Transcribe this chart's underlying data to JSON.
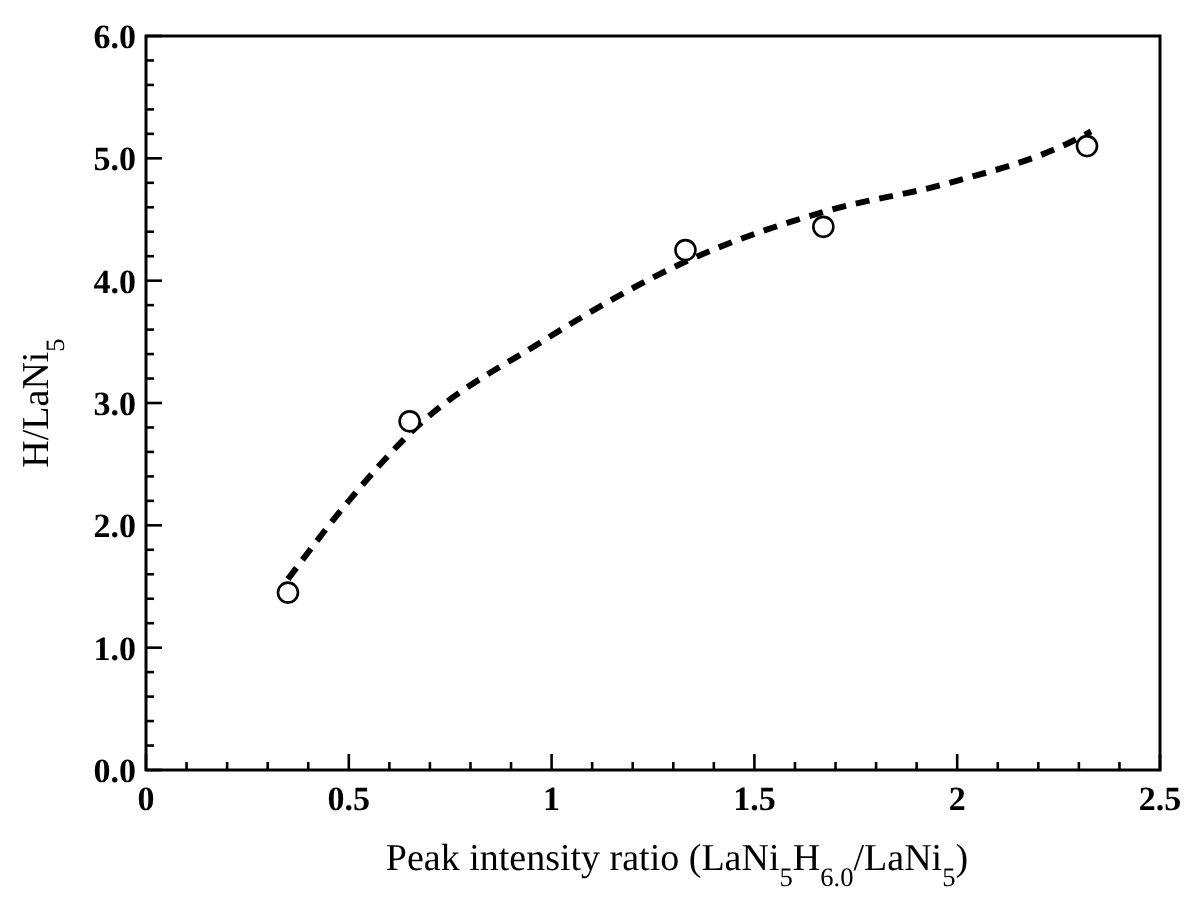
{
  "chart_data": {
    "type": "scatter",
    "xlabel": "Peak intensity ratio (LaNi$_{5}$H$_{6.0}$/LaNi$_{5}$)",
    "ylabel": "H/LaNi$_{5}$",
    "xlim": [
      0,
      2.5
    ],
    "ylim": [
      0,
      6
    ],
    "xticks": [
      0,
      {
        "value": 0.1,
        "label": null
      },
      {
        "value": 0.2,
        "label": null
      },
      {
        "value": 0.3,
        "label": null
      },
      {
        "value": 0.4,
        "label": null
      },
      0.5,
      {
        "value": 0.6,
        "label": null
      },
      {
        "value": 0.7,
        "label": null
      },
      {
        "value": 0.8,
        "label": null
      },
      {
        "value": 0.9,
        "label": null
      },
      1,
      {
        "value": 1.1,
        "label": null
      },
      {
        "value": 1.2,
        "label": null
      },
      {
        "value": 1.3,
        "label": null
      },
      {
        "value": 1.4,
        "label": null
      },
      1.5,
      {
        "value": 1.6,
        "label": null
      },
      {
        "value": 1.7,
        "label": null
      },
      {
        "value": 1.8,
        "label": null
      },
      {
        "value": 1.9,
        "label": null
      },
      2,
      {
        "value": 2.1,
        "label": null
      },
      {
        "value": 2.2,
        "label": null
      },
      {
        "value": 2.3,
        "label": null
      },
      {
        "value": 2.4,
        "label": null
      },
      2.5
    ],
    "yticks": [
      {
        "value": 0,
        "label": "0.0"
      },
      {
        "value": 0.2,
        "label": null
      },
      {
        "value": 0.4,
        "label": null
      },
      {
        "value": 0.6,
        "label": null
      },
      {
        "value": 0.8,
        "label": null
      },
      {
        "value": 1,
        "label": "1.0"
      },
      {
        "value": 1.2,
        "label": null
      },
      {
        "value": 1.4,
        "label": null
      },
      {
        "value": 1.6,
        "label": null
      },
      {
        "value": 1.8,
        "label": null
      },
      {
        "value": 2,
        "label": "2.0"
      },
      {
        "value": 2.2,
        "label": null
      },
      {
        "value": 2.4,
        "label": null
      },
      {
        "value": 2.6,
        "label": null
      },
      {
        "value": 2.8,
        "label": null
      },
      {
        "value": 3,
        "label": "3.0"
      },
      {
        "value": 3.2,
        "label": null
      },
      {
        "value": 3.4,
        "label": null
      },
      {
        "value": 3.6,
        "label": null
      },
      {
        "value": 3.8,
        "label": null
      },
      {
        "value": 4,
        "label": "4.0"
      },
      {
        "value": 4.2,
        "label": null
      },
      {
        "value": 4.4,
        "label": null
      },
      {
        "value": 4.6,
        "label": null
      },
      {
        "value": 4.8,
        "label": null
      },
      {
        "value": 5,
        "label": "5.0"
      },
      {
        "value": 5.2,
        "label": null
      },
      {
        "value": 5.4,
        "label": null
      },
      {
        "value": 5.6,
        "label": null
      },
      {
        "value": 5.8,
        "label": null
      },
      {
        "value": 6,
        "label": "6.0"
      }
    ],
    "grid": false,
    "series": [
      {
        "color": "#000000",
        "marker": "circle",
        "x": [
          0.35,
          0.65,
          1.33,
          1.67,
          2.32
        ],
        "values": [
          1.45,
          2.85,
          4.25,
          4.44,
          5.1
        ]
      },
      {
        "type": "line",
        "color": "#000000",
        "marker": "none",
        "line_style": "dashed",
        "x": [
          0.35,
          0.5,
          0.65,
          0.98,
          1.34,
          1.69,
          1.97,
          2.29,
          2.33
        ],
        "values": [
          1.56,
          2.2,
          2.75,
          3.51,
          4.17,
          4.58,
          4.79,
          5.15,
          5.22
        ]
      }
    ]
  }
}
